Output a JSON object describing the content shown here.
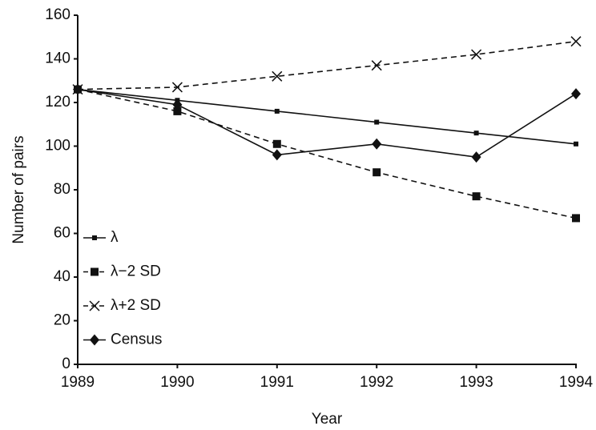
{
  "chart_data": {
    "type": "line",
    "x_label": "Year",
    "y_label": "Number of pairs",
    "x": [
      1989,
      1990,
      1991,
      1992,
      1993,
      1994
    ],
    "xlim": [
      1989,
      1994
    ],
    "xticks": [
      1989,
      1990,
      1991,
      1992,
      1993,
      1994
    ],
    "ylim": [
      0,
      160
    ],
    "yticks": [
      0,
      20,
      40,
      60,
      80,
      100,
      120,
      140,
      160
    ],
    "grid": false,
    "legend": "lower-left",
    "series": [
      {
        "name": "λ",
        "color": "#111111",
        "marker": "small-square",
        "dashed": false,
        "values": [
          126,
          121,
          116,
          111,
          106,
          101
        ]
      },
      {
        "name": "λ−2 SD",
        "color": "#111111",
        "marker": "square",
        "dashed": true,
        "values": [
          126,
          116,
          101,
          88,
          77,
          67
        ]
      },
      {
        "name": "λ+2 SD",
        "color": "#111111",
        "marker": "cross",
        "dashed": true,
        "values": [
          126,
          127,
          132,
          137,
          142,
          148
        ]
      },
      {
        "name": "Census",
        "color": "#111111",
        "marker": "diamond",
        "dashed": false,
        "values": [
          126,
          119,
          96,
          101,
          95,
          124
        ]
      }
    ]
  }
}
